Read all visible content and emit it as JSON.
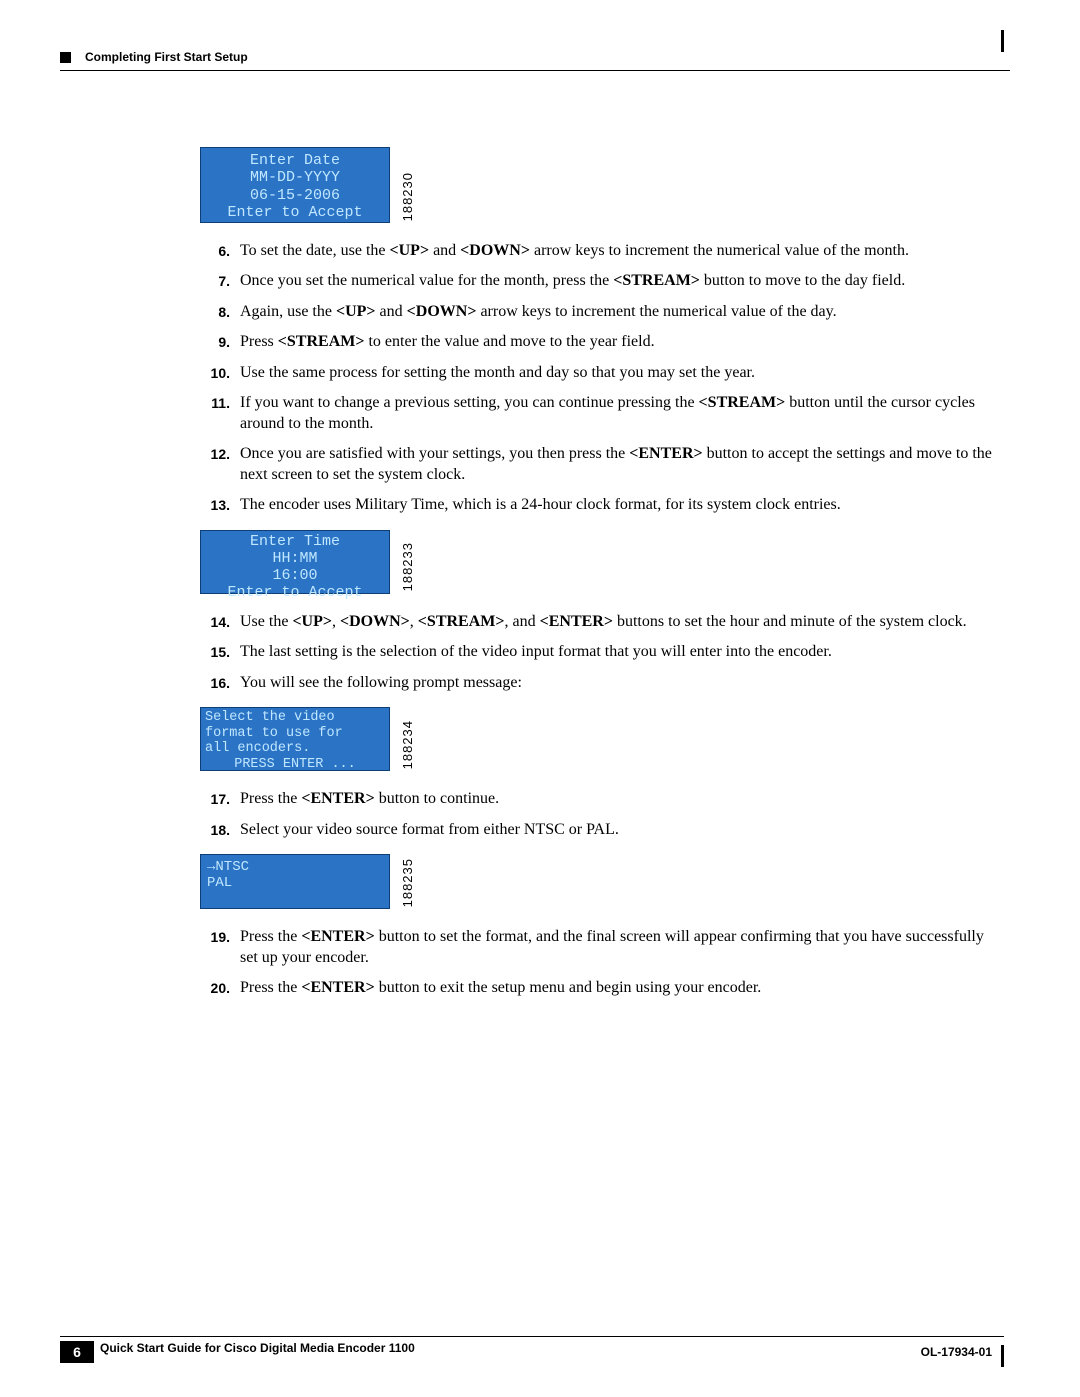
{
  "header": {
    "section_title": "Completing First Start Setup"
  },
  "lcd_date": {
    "line1": "Enter Date",
    "line2": "MM-DD-YYYY",
    "line3": "06-15-2006",
    "line4": "Enter to Accept",
    "image_id": "188230",
    "bg_color": "#2a73c5",
    "text_color": "#bfe7ff"
  },
  "lcd_time": {
    "line1": "Enter Time",
    "line2": "HH:MM",
    "line3": "16:00",
    "line4": "Enter to Accept",
    "image_id": "188233"
  },
  "lcd_video": {
    "line1": "Select the video",
    "line2": "format to use for",
    "line3": "all encoders.",
    "line4": "PRESS ENTER ...",
    "image_id": "188234"
  },
  "lcd_ntsc": {
    "line1": "→NTSC",
    "line2": " PAL",
    "image_id": "188235"
  },
  "steps": {
    "s6": "To set the date, use the <UP> and <DOWN> arrow keys to increment the numerical value of the month.",
    "s7": "Once you set the numerical value for the month, press the <STREAM> button to move to the day field.",
    "s8": "Again, use the <UP> and <DOWN> arrow keys to increment the numerical value of the day.",
    "s9": "Press <STREAM> to enter the value and move to the year field.",
    "s10": "Use the same process for setting the month and day so that you may set the year.",
    "s11": "If you want to change a previous setting, you can continue pressing the <STREAM> button until the cursor cycles around to the month.",
    "s12": "Once you are satisfied with your settings, you then press the <ENTER> button to accept the settings and move to the next screen to set the system clock.",
    "s13": "The encoder uses Military Time, which is a 24-hour clock format, for its system clock entries.",
    "s14": "Use the <UP>, <DOWN>, <STREAM>, and <ENTER> buttons to set the hour and minute of the system clock.",
    "s15": "The last setting is the selection of the video input format that you will enter into the encoder.",
    "s16": "You will see the following prompt message:",
    "s17": "Press the <ENTER> button to continue.",
    "s18": "Select your video source format from either NTSC or PAL.",
    "s19": "Press the <ENTER> button to set the format, and the final screen will appear confirming that you have successfully set up your encoder.",
    "s20": "Press the <ENTER> button to exit the setup menu and begin using your encoder."
  },
  "footer": {
    "guide_title": "Quick Start Guide for Cisco Digital Media Encoder 1100",
    "page_number": "6",
    "doc_id": "OL-17934-01"
  }
}
